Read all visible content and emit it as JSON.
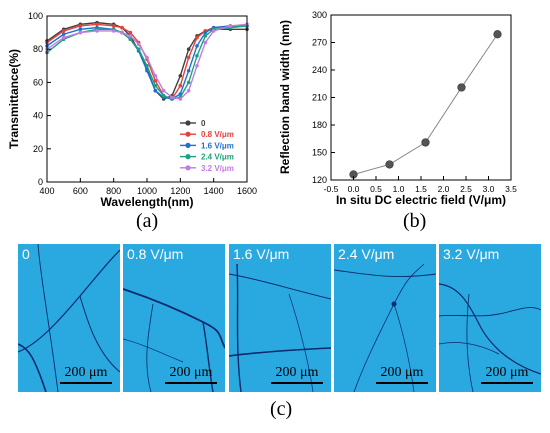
{
  "figure": {
    "caption_a": "(a)",
    "caption_b": "(b)",
    "caption_c": "(c)"
  },
  "colors": {
    "series_0": "#404040",
    "series_0_8": "#e8413b",
    "series_1_6": "#1f6fd1",
    "series_2_4": "#1aa37a",
    "series_3_2": "#c27be6",
    "panel_b_marker": "#555555",
    "micrograph_bg": "#2aa8e0",
    "crack": "#0b2a6b"
  },
  "chart_data": [
    {
      "type": "line",
      "xlabel": "Wavelength(nm)",
      "ylabel": "Transmittance(%)",
      "xlim": [
        400,
        1600
      ],
      "ylim": [
        0,
        100
      ],
      "x_ticks": [
        400,
        600,
        800,
        1000,
        1200,
        1400,
        1600
      ],
      "y_ticks": [
        0,
        20,
        40,
        60,
        80,
        100
      ],
      "legend_position": "bottom-right",
      "x": [
        400,
        500,
        600,
        700,
        800,
        850,
        900,
        950,
        1000,
        1050,
        1100,
        1150,
        1200,
        1250,
        1300,
        1350,
        1400,
        1500,
        1600
      ],
      "series": [
        {
          "name": "0",
          "values": [
            85,
            92,
            95,
            96,
            95,
            93,
            88,
            79,
            68,
            55,
            50,
            52,
            64,
            80,
            88,
            91,
            92,
            92,
            92
          ]
        },
        {
          "name": "0.8 V/μm",
          "values": [
            84,
            91,
            94,
            95,
            94,
            93,
            90,
            84,
            74,
            61,
            52,
            50,
            58,
            75,
            87,
            91,
            93,
            94,
            94
          ]
        },
        {
          "name": "1.6 V/μm",
          "values": [
            82,
            89,
            92,
            93,
            92,
            90,
            86,
            79,
            67,
            55,
            51,
            50,
            53,
            67,
            82,
            90,
            93,
            94,
            94
          ]
        },
        {
          "name": "2.4 V/μm",
          "values": [
            78,
            86,
            90,
            92,
            92,
            90,
            86,
            80,
            70,
            58,
            52,
            50,
            51,
            60,
            76,
            88,
            92,
            93,
            94
          ]
        },
        {
          "name": "3.2 V/μm",
          "values": [
            80,
            87,
            90,
            91,
            91,
            90,
            88,
            83,
            75,
            64,
            55,
            51,
            50,
            55,
            70,
            84,
            91,
            94,
            95
          ]
        }
      ]
    },
    {
      "type": "line",
      "xlabel": "In situ DC electric field (V/μm)",
      "ylabel": "Reflection band width (nm)",
      "xlim": [
        -0.5,
        3.5
      ],
      "ylim": [
        120,
        300
      ],
      "x_ticks": [
        "-0.5",
        "0.0",
        "0.5",
        "1.0",
        "1.5",
        "2.0",
        "2.5",
        "3.0",
        "3.5"
      ],
      "y_ticks": [
        "120",
        "150",
        "180",
        "210",
        "240",
        "270",
        "300"
      ],
      "x": [
        0,
        0.8,
        1.6,
        2.4,
        3.2
      ],
      "values": [
        126,
        137,
        161,
        221,
        279
      ]
    }
  ],
  "micrographs": [
    {
      "label": "0",
      "scale": "200 μm"
    },
    {
      "label": "0.8 V/μm",
      "scale": "200 μm"
    },
    {
      "label": "1.6 V/μm",
      "scale": "200 μm"
    },
    {
      "label": "2.4 V/μm",
      "scale": "200 μm"
    },
    {
      "label": "3.2 V/μm",
      "scale": "200 μm"
    }
  ]
}
